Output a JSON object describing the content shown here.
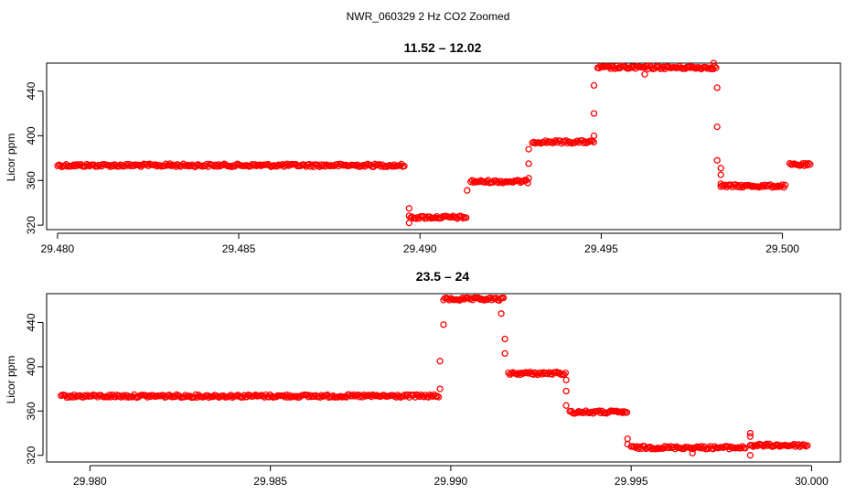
{
  "figure": {
    "title": "NWR_060329  2 Hz CO2 Zoomed"
  },
  "colors": {
    "points": "#ff0000",
    "axes": "#000000"
  },
  "chart_data": [
    {
      "type": "scatter",
      "title": "11.52 – 12.02",
      "xlabel": "",
      "ylabel": "Licor ppm",
      "xlim": [
        29.4797,
        29.5016
      ],
      "ylim": [
        316,
        465
      ],
      "x_ticks": [
        "29.480",
        "29.485",
        "29.490",
        "29.495",
        "29.500"
      ],
      "y_ticks": [
        "320",
        "360",
        "400",
        "440"
      ],
      "grid": false,
      "legend": "none",
      "segments": [
        {
          "x_start": 29.48,
          "x_end": 29.4896,
          "value": 373.5
        },
        {
          "x_start": 29.4897,
          "x_end": 29.4913,
          "value": 327.0
        },
        {
          "x_start": 29.4914,
          "x_end": 29.493,
          "value": 359.0
        },
        {
          "x_start": 29.4931,
          "x_end": 29.4948,
          "value": 394.5
        },
        {
          "x_start": 29.4949,
          "x_end": 29.4982,
          "value": 461.0
        },
        {
          "x_start": 29.4983,
          "x_end": 29.5001,
          "value": 355.0
        },
        {
          "x_start": 29.5002,
          "x_end": 29.5008,
          "value": 374.0
        }
      ],
      "outliers": [
        [
          29.4831,
          375
        ],
        [
          29.4897,
          335
        ],
        [
          29.4897,
          322
        ],
        [
          29.4913,
          351
        ],
        [
          29.493,
          375
        ],
        [
          29.493,
          388
        ],
        [
          29.493,
          362
        ],
        [
          29.4948,
          420
        ],
        [
          29.4948,
          445
        ],
        [
          29.4948,
          400
        ],
        [
          29.4962,
          455
        ],
        [
          29.4981,
          465
        ],
        [
          29.4982,
          443
        ],
        [
          29.4982,
          408
        ],
        [
          29.4982,
          378
        ],
        [
          29.4983,
          371
        ],
        [
          29.4983,
          365
        ],
        [
          29.4983,
          357
        ]
      ]
    },
    {
      "type": "scatter",
      "title": "23.5 – 24",
      "xlabel": "",
      "ylabel": "Licor ppm",
      "xlim": [
        29.9788,
        30.0008
      ],
      "ylim": [
        314,
        466
      ],
      "x_ticks": [
        "29.980",
        "29.985",
        "29.990",
        "29.995",
        "30.000"
      ],
      "y_ticks": [
        "320",
        "360",
        "400",
        "440"
      ],
      "grid": false,
      "legend": "none",
      "segments": [
        {
          "x_start": 29.9792,
          "x_end": 29.9897,
          "value": 373.5
        },
        {
          "x_start": 29.9898,
          "x_end": 29.9915,
          "value": 461.0
        },
        {
          "x_start": 29.9916,
          "x_end": 29.9932,
          "value": 394.0
        },
        {
          "x_start": 29.9933,
          "x_end": 29.9949,
          "value": 359.0
        },
        {
          "x_start": 29.995,
          "x_end": 29.9982,
          "value": 327.0
        },
        {
          "x_start": 29.9983,
          "x_end": 29.9999,
          "value": 329.0
        }
      ],
      "outliers": [
        [
          29.9897,
          380
        ],
        [
          29.9897,
          405
        ],
        [
          29.9898,
          438
        ],
        [
          29.9914,
          448
        ],
        [
          29.9915,
          425
        ],
        [
          29.9915,
          412
        ],
        [
          29.9932,
          388
        ],
        [
          29.9932,
          378
        ],
        [
          29.9932,
          365
        ],
        [
          29.9949,
          335
        ],
        [
          29.9949,
          330
        ],
        [
          29.9967,
          322
        ],
        [
          29.9983,
          340
        ],
        [
          29.9983,
          337
        ],
        [
          29.9983,
          320
        ]
      ]
    }
  ]
}
